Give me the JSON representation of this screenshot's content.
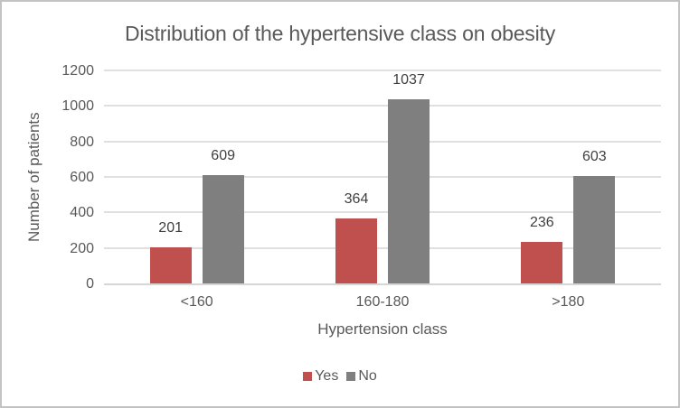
{
  "chart_data": {
    "type": "bar",
    "title": "Distribution of the hypertensive class on obesity",
    "xlabel": "Hypertension class",
    "ylabel": "Number of patients",
    "categories": [
      "<160",
      "160-180",
      ">180"
    ],
    "series": [
      {
        "name": "Yes",
        "color": "#c0504d",
        "values": [
          201,
          364,
          236
        ]
      },
      {
        "name": "No",
        "color": "#7f7f7f",
        "values": [
          609,
          1037,
          603
        ]
      }
    ],
    "ylim": [
      0,
      1200
    ],
    "ytick_step": 200,
    "yticks": [
      "0",
      "200",
      "400",
      "600",
      "800",
      "1000",
      "1200"
    ],
    "grid": true,
    "data_labels": true,
    "legend_position": "bottom",
    "colors": {
      "text": "#595959",
      "data_label_text": "#404040",
      "gridline": "#e0e0e0",
      "frame_border": "#c3c3c3",
      "background": "#ffffff"
    }
  }
}
